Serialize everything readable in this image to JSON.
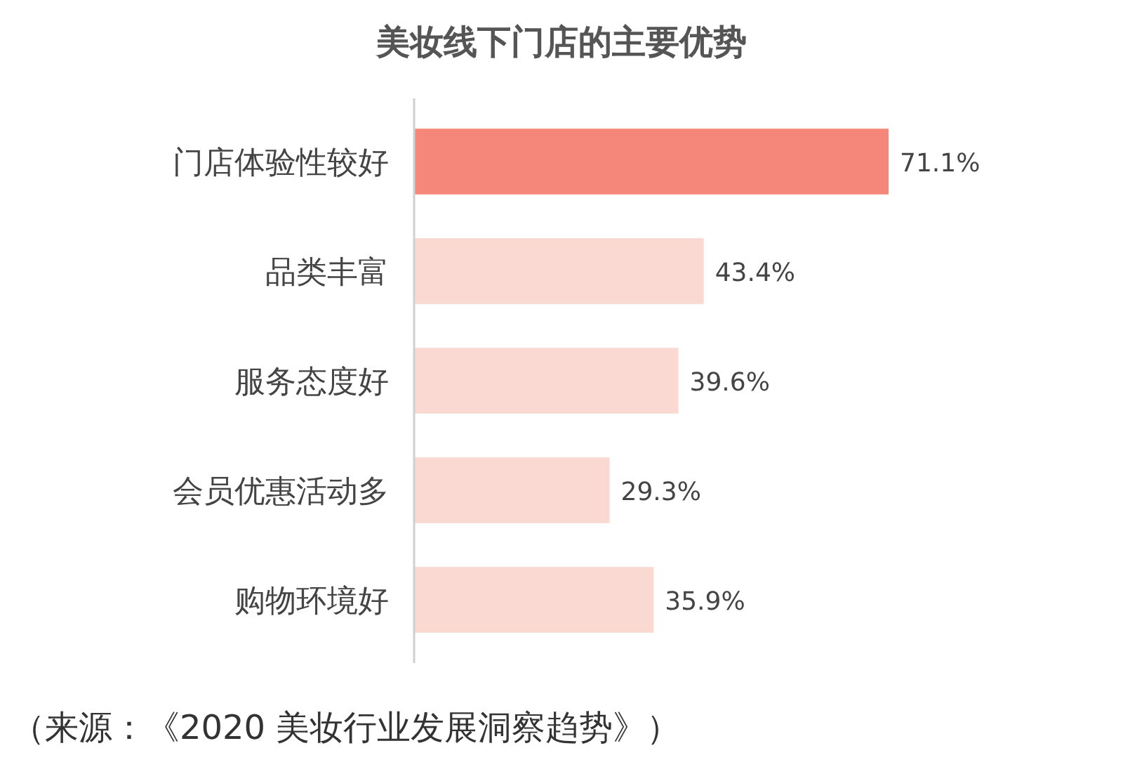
{
  "chart_data": {
    "type": "bar",
    "orientation": "horizontal",
    "title": "美妆线下门店的主要优势",
    "categories": [
      "门店体验性较好",
      "品类丰富",
      "服务态度好",
      "会员优惠活动多",
      "购物环境好"
    ],
    "values": [
      71.1,
      43.4,
      39.6,
      29.3,
      35.9
    ],
    "colors": [
      "#f4877a",
      "#fbd9d3",
      "#fbd9d3",
      "#fbd9d3",
      "#fbd9d3"
    ],
    "value_labels": [
      "71.1%",
      "43.4%",
      "39.6%",
      "29.3%",
      "35.9%"
    ],
    "annotations": [
      "（来源：《2020 美妆行业发展洞察趋势》）"
    ]
  }
}
